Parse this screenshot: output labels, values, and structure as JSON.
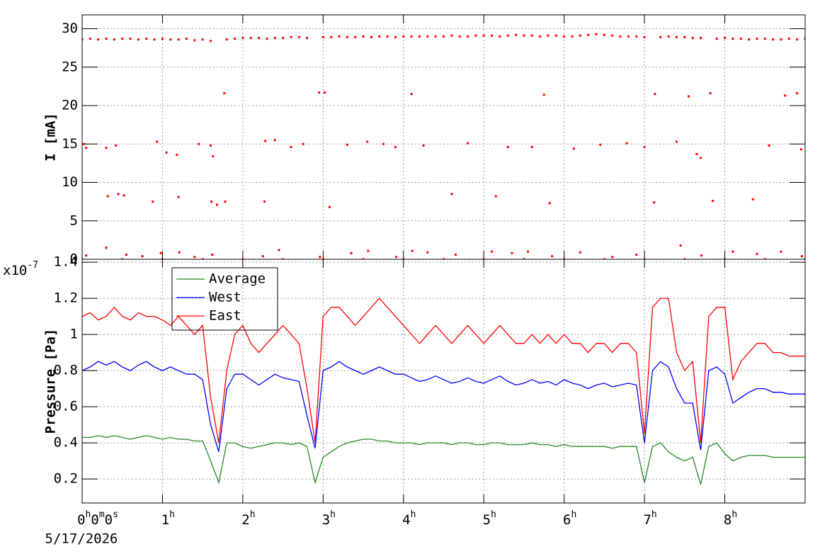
{
  "chart_data": [
    {
      "type": "scatter",
      "y_label": "I [mA]",
      "color": "#ff0000",
      "xlim": [
        0,
        9
      ],
      "ylim": [
        0,
        31.8
      ],
      "yticks": [
        0,
        5,
        10,
        15,
        20,
        25,
        30
      ],
      "grid": true,
      "x": [
        0,
        0.1,
        0.2,
        0.3,
        0.4,
        0.5,
        0.6,
        0.7,
        0.8,
        0.9,
        1.0,
        1.1,
        1.2,
        1.3,
        1.4,
        1.5,
        1.6,
        1.8,
        1.9,
        2.0,
        2.1,
        2.2,
        2.3,
        2.4,
        2.5,
        2.6,
        2.7,
        2.8,
        3.0,
        3.1,
        3.2,
        3.3,
        3.4,
        3.5,
        3.6,
        3.7,
        3.8,
        3.9,
        4.0,
        4.1,
        4.2,
        4.3,
        4.4,
        4.5,
        4.6,
        4.7,
        4.8,
        4.9,
        5.0,
        5.1,
        5.2,
        5.3,
        5.4,
        5.5,
        5.6,
        5.7,
        5.8,
        5.9,
        6.0,
        6.1,
        6.2,
        6.3,
        6.4,
        6.5,
        6.6,
        6.7,
        6.8,
        6.9,
        7.0,
        7.2,
        7.3,
        7.4,
        7.5,
        7.6,
        7.7,
        7.9,
        8.0,
        8.1,
        8.2,
        8.3,
        8.4,
        8.5,
        8.6,
        8.7,
        8.8,
        8.9,
        9.0,
        0.02,
        0.05,
        0.3,
        0.42,
        0.32,
        0.45,
        0.52,
        0.88,
        0.93,
        1.05,
        1.18,
        1.2,
        1.45,
        1.6,
        1.63,
        1.61,
        1.68,
        1.77,
        1.78,
        2.27,
        2.28,
        2.4,
        2.6,
        2.75,
        2.95,
        3.02,
        3.08,
        3.3,
        3.55,
        3.75,
        3.9,
        4.1,
        4.25,
        4.6,
        4.8,
        5.15,
        5.3,
        5.6,
        5.75,
        5.82,
        6.12,
        6.45,
        6.78,
        7.0,
        7.13,
        7.12,
        7.4,
        7.55,
        7.65,
        7.7,
        7.82,
        7.85,
        8.35,
        8.55,
        8.75,
        8.9,
        8.95,
        0.05,
        0.3,
        0.55,
        0.75,
        0.98,
        1.21,
        1.4,
        1.62,
        2.25,
        2.45,
        2.96,
        3.35,
        3.56,
        3.91,
        4.11,
        4.3,
        4.65,
        5.1,
        5.35,
        5.55,
        5.85,
        6.2,
        6.6,
        6.9,
        7.45,
        7.71,
        8.1,
        8.4,
        8.7,
        8.96,
        0,
        0.5,
        1.0,
        1.5,
        2.0,
        2.5,
        3.0,
        3.5,
        4.0,
        4.5,
        5.0,
        5.5,
        6.0,
        6.5,
        7.0,
        7.5,
        8.0,
        8.5,
        9.0
      ],
      "values": [
        28.6,
        28.7,
        28.6,
        28.7,
        28.6,
        28.7,
        28.7,
        28.6,
        28.7,
        28.6,
        28.7,
        28.6,
        28.6,
        28.7,
        28.5,
        28.6,
        28.4,
        28.6,
        28.7,
        28.8,
        28.8,
        28.8,
        28.7,
        28.8,
        28.8,
        28.9,
        28.9,
        28.8,
        28.9,
        28.9,
        29.0,
        28.9,
        28.9,
        29.0,
        28.9,
        29.0,
        29.0,
        28.9,
        29.0,
        29.0,
        29.0,
        29.0,
        29.0,
        29.0,
        29.1,
        29.0,
        29.0,
        29.1,
        29.1,
        29.1,
        29.0,
        29.1,
        29.2,
        29.1,
        29.1,
        29.0,
        29.1,
        29.1,
        29.0,
        29.0,
        29.1,
        29.2,
        29.3,
        29.2,
        29.1,
        29.0,
        29.0,
        29.0,
        28.9,
        28.9,
        29.0,
        28.9,
        28.9,
        28.8,
        28.8,
        28.7,
        28.8,
        28.7,
        28.7,
        28.6,
        28.7,
        28.7,
        28.6,
        28.6,
        28.7,
        28.6,
        28.7,
        15.0,
        14.5,
        14.5,
        14.8,
        8.2,
        8.5,
        8.3,
        7.5,
        15.3,
        13.9,
        13.6,
        8.1,
        15.0,
        14.8,
        13.4,
        7.5,
        7.1,
        21.6,
        7.5,
        7.5,
        15.4,
        15.5,
        14.6,
        15.0,
        21.7,
        21.7,
        6.8,
        14.9,
        15.3,
        15.0,
        14.6,
        21.5,
        14.8,
        8.5,
        15.1,
        8.2,
        14.6,
        14.6,
        21.4,
        7.3,
        14.4,
        14.9,
        15.1,
        14.6,
        21.5,
        7.4,
        15.3,
        21.2,
        13.7,
        13.2,
        21.6,
        7.6,
        7.8,
        14.8,
        21.3,
        21.6,
        14.3,
        0.5,
        1.5,
        0.6,
        0.4,
        0.8,
        0.9,
        0.3,
        0.6,
        0.4,
        1.2,
        0.3,
        0.8,
        1.1,
        0.3,
        1.1,
        0.9,
        0.6,
        1.0,
        0.8,
        1.0,
        0.4,
        0.9,
        0.3,
        0.6,
        1.8,
        0.5,
        1.0,
        0.7,
        1.0,
        0.4,
        0,
        0,
        0,
        0,
        0,
        0,
        0,
        0,
        0,
        0,
        0,
        0,
        0,
        0,
        0,
        0,
        0,
        0,
        0
      ]
    },
    {
      "type": "line",
      "y_label": "Pressure [Pa]",
      "y_multiplier": "x10-7",
      "date": "5/17/2026",
      "xlim": [
        0,
        9
      ],
      "ylim": [
        0.067,
        1.416
      ],
      "yticks": [
        0.2,
        0.4,
        0.6,
        0.8,
        1,
        1.2,
        1.4
      ],
      "grid": true,
      "legend": "top-left",
      "xticks": [
        {
          "value": 0,
          "label": "0h0m0s"
        },
        {
          "value": 1,
          "label": "1h"
        },
        {
          "value": 2,
          "label": "2h"
        },
        {
          "value": 3,
          "label": "3h"
        },
        {
          "value": 4,
          "label": "4h"
        },
        {
          "value": 5,
          "label": "5h"
        },
        {
          "value": 6,
          "label": "6h"
        },
        {
          "value": 7,
          "label": "7h"
        },
        {
          "value": 8,
          "label": "8h"
        }
      ],
      "x": [
        0,
        0.1,
        0.2,
        0.3,
        0.4,
        0.5,
        0.6,
        0.7,
        0.8,
        0.9,
        1.0,
        1.1,
        1.2,
        1.3,
        1.4,
        1.5,
        1.6,
        1.7,
        1.8,
        1.9,
        2.0,
        2.1,
        2.2,
        2.3,
        2.4,
        2.5,
        2.6,
        2.7,
        2.8,
        2.9,
        3.0,
        3.1,
        3.2,
        3.3,
        3.4,
        3.5,
        3.6,
        3.7,
        3.8,
        3.9,
        4.0,
        4.1,
        4.2,
        4.3,
        4.4,
        4.5,
        4.6,
        4.7,
        4.8,
        4.9,
        5.0,
        5.1,
        5.2,
        5.3,
        5.4,
        5.5,
        5.6,
        5.7,
        5.8,
        5.9,
        6.0,
        6.1,
        6.2,
        6.3,
        6.4,
        6.5,
        6.6,
        6.7,
        6.8,
        6.9,
        7.0,
        7.1,
        7.2,
        7.3,
        7.4,
        7.5,
        7.6,
        7.7,
        7.8,
        7.9,
        8.0,
        8.1,
        8.2,
        8.3,
        8.4,
        8.5,
        8.6,
        8.7,
        8.8,
        8.9,
        9.0
      ],
      "series": [
        {
          "name": "Average",
          "color": "#228b22",
          "values": [
            0.43,
            0.43,
            0.44,
            0.43,
            0.44,
            0.43,
            0.42,
            0.43,
            0.44,
            0.43,
            0.42,
            0.43,
            0.42,
            0.42,
            0.41,
            0.41,
            0.3,
            0.18,
            0.4,
            0.4,
            0.38,
            0.37,
            0.38,
            0.39,
            0.4,
            0.4,
            0.39,
            0.4,
            0.38,
            0.18,
            0.32,
            0.35,
            0.38,
            0.4,
            0.41,
            0.42,
            0.42,
            0.41,
            0.41,
            0.4,
            0.4,
            0.4,
            0.39,
            0.4,
            0.4,
            0.4,
            0.39,
            0.4,
            0.4,
            0.39,
            0.39,
            0.4,
            0.4,
            0.39,
            0.39,
            0.39,
            0.4,
            0.39,
            0.39,
            0.38,
            0.39,
            0.38,
            0.38,
            0.38,
            0.38,
            0.38,
            0.37,
            0.38,
            0.38,
            0.38,
            0.18,
            0.38,
            0.4,
            0.35,
            0.32,
            0.3,
            0.32,
            0.17,
            0.38,
            0.4,
            0.34,
            0.3,
            0.32,
            0.33,
            0.33,
            0.33,
            0.32,
            0.32,
            0.32,
            0.32,
            0.32
          ]
        },
        {
          "name": "West",
          "color": "#0000ff",
          "values": [
            0.8,
            0.82,
            0.85,
            0.83,
            0.85,
            0.82,
            0.8,
            0.83,
            0.85,
            0.82,
            0.8,
            0.82,
            0.8,
            0.78,
            0.78,
            0.75,
            0.5,
            0.35,
            0.7,
            0.78,
            0.78,
            0.75,
            0.72,
            0.75,
            0.78,
            0.76,
            0.75,
            0.74,
            0.55,
            0.37,
            0.8,
            0.82,
            0.85,
            0.82,
            0.8,
            0.78,
            0.8,
            0.82,
            0.8,
            0.78,
            0.78,
            0.76,
            0.74,
            0.75,
            0.77,
            0.75,
            0.73,
            0.74,
            0.76,
            0.74,
            0.73,
            0.75,
            0.77,
            0.74,
            0.72,
            0.73,
            0.75,
            0.73,
            0.74,
            0.72,
            0.75,
            0.73,
            0.72,
            0.7,
            0.72,
            0.73,
            0.71,
            0.72,
            0.73,
            0.72,
            0.4,
            0.8,
            0.85,
            0.82,
            0.7,
            0.62,
            0.62,
            0.36,
            0.8,
            0.82,
            0.78,
            0.62,
            0.65,
            0.68,
            0.7,
            0.7,
            0.68,
            0.68,
            0.67,
            0.67,
            0.67
          ]
        },
        {
          "name": "East",
          "color": "#ff0000",
          "values": [
            1.1,
            1.12,
            1.08,
            1.1,
            1.15,
            1.1,
            1.08,
            1.12,
            1.1,
            1.1,
            1.08,
            1.05,
            1.1,
            1.05,
            1.0,
            1.05,
            0.65,
            0.4,
            0.8,
            1.0,
            1.05,
            0.95,
            0.9,
            0.95,
            1.0,
            1.05,
            1.0,
            0.95,
            0.7,
            0.4,
            1.1,
            1.15,
            1.15,
            1.1,
            1.05,
            1.1,
            1.15,
            1.2,
            1.15,
            1.1,
            1.05,
            1.0,
            0.95,
            1.0,
            1.05,
            1.0,
            0.95,
            1.0,
            1.05,
            1.0,
            0.95,
            1.0,
            1.05,
            1.0,
            0.95,
            0.95,
            1.0,
            0.95,
            1.0,
            0.95,
            1.0,
            0.95,
            0.95,
            0.9,
            0.95,
            0.95,
            0.9,
            0.95,
            0.95,
            0.9,
            0.45,
            1.15,
            1.2,
            1.2,
            0.9,
            0.8,
            0.85,
            0.4,
            1.1,
            1.15,
            1.15,
            0.75,
            0.85,
            0.9,
            0.95,
            0.95,
            0.9,
            0.9,
            0.88,
            0.88,
            0.88
          ]
        }
      ]
    }
  ]
}
